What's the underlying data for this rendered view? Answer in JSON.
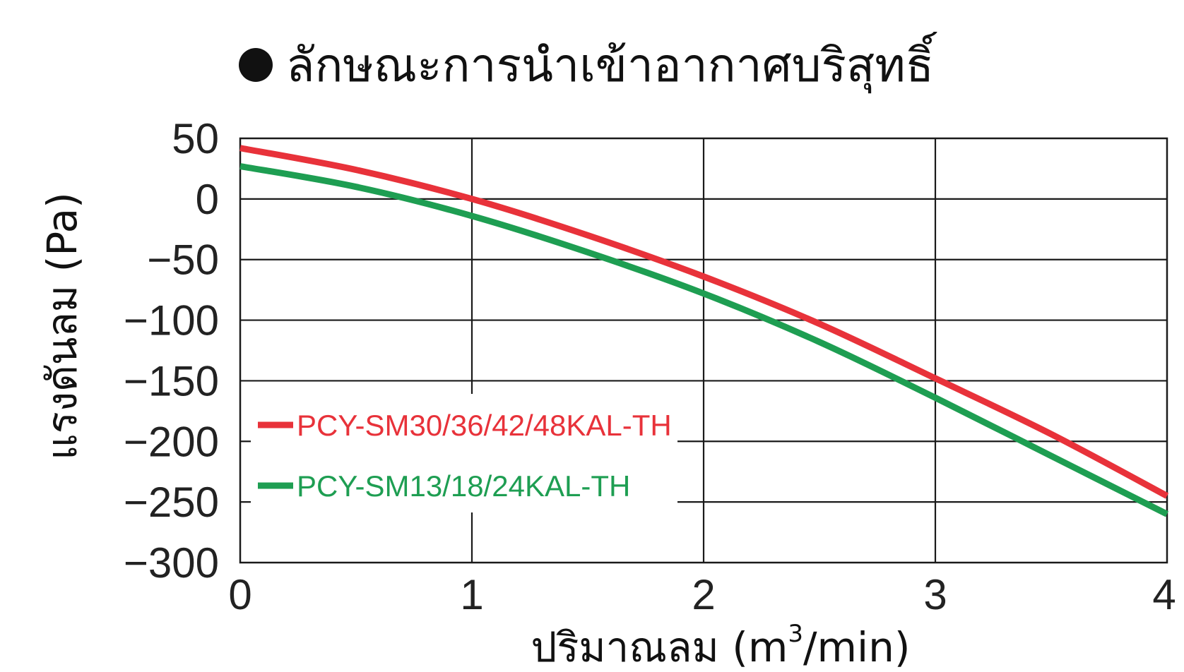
{
  "chart_data": {
    "type": "line",
    "title": "ลักษณะการนำเข้าอากาศบริสุทธิ์",
    "xlabel": "ปริมาณลม (m³/min)",
    "xlabel_parts": {
      "main": "ปริมาณลม (m",
      "sup": "3",
      "end": "/min)"
    },
    "ylabel": "แรงดันลม (Pa)",
    "xlim": [
      0,
      4
    ],
    "ylim": [
      -300,
      50
    ],
    "x_ticks": [
      "0",
      "1",
      "2",
      "3",
      "4"
    ],
    "y_ticks": [
      "50",
      "0",
      "−50",
      "−100",
      "−150",
      "−200",
      "−250",
      "−300"
    ],
    "grid": true,
    "legend_position": "left-inside",
    "x": [
      0,
      0.5,
      1,
      1.5,
      2,
      2.5,
      3,
      3.5,
      4
    ],
    "series": [
      {
        "name": "PCY-SM30/36/42/48KAL-TH",
        "color": "#e8323a",
        "values": [
          42,
          24,
          0,
          -30,
          -64,
          -103,
          -148,
          -194,
          -245
        ]
      },
      {
        "name": "PCY-SM13/18/24KAL-TH",
        "color": "#1e9e52",
        "values": [
          27,
          10,
          -14,
          -44,
          -78,
          -118,
          -164,
          -212,
          -260
        ]
      }
    ]
  }
}
